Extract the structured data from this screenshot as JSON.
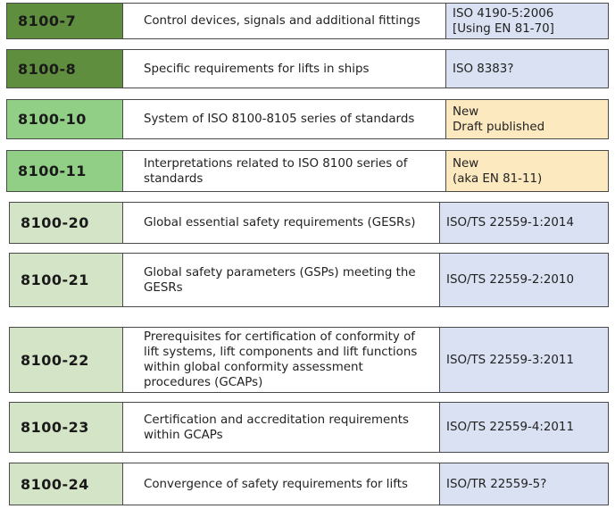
{
  "rows": [
    {
      "code": "8100-7",
      "description": "Control devices, signals and additional fittings",
      "standard": "ISO 4190-5:2006\n[Using EN 81-70]"
    },
    {
      "code": "8100-8",
      "description": "Specific requirements for lifts in ships",
      "standard": "ISO 8383?"
    },
    {
      "code": "8100-10",
      "description": "System of ISO 8100-8105 series of standards",
      "standard": "New\nDraft published"
    },
    {
      "code": "8100-11",
      "description": "Interpretations related to ISO 8100 series of standards",
      "standard": "New\n(aka EN 81-11)"
    },
    {
      "code": "8100-20",
      "description": "Global essential safety requirements (GESRs)",
      "standard": "ISO/TS 22559-1:2014"
    },
    {
      "code": "8100-21",
      "description": "Global safety parameters (GSPs) meeting the GESRs",
      "standard": "ISO/TS 22559-2:2010"
    },
    {
      "code": "8100-22",
      "description": "Prerequisites for certification of conformity of lift systems, lift components and lift functions within global conformity assessment procedures (GCAPs)",
      "standard": "ISO/TS 22559-3:2011"
    },
    {
      "code": "8100-23",
      "description": "Certification and accreditation requirements within GCAPs",
      "standard": "ISO/TS 22559-4:2011"
    },
    {
      "code": "8100-24",
      "description": "Convergence of safety requirements for lifts",
      "standard": "ISO/TR 22559-5?"
    }
  ],
  "colors": {
    "code_dark_green": "#5f8f3e",
    "code_mid_green": "#92cf86",
    "code_light_green": "#d4e4c6",
    "standard_blue": "#d9e1f2",
    "standard_yellow": "#fde9bf"
  }
}
